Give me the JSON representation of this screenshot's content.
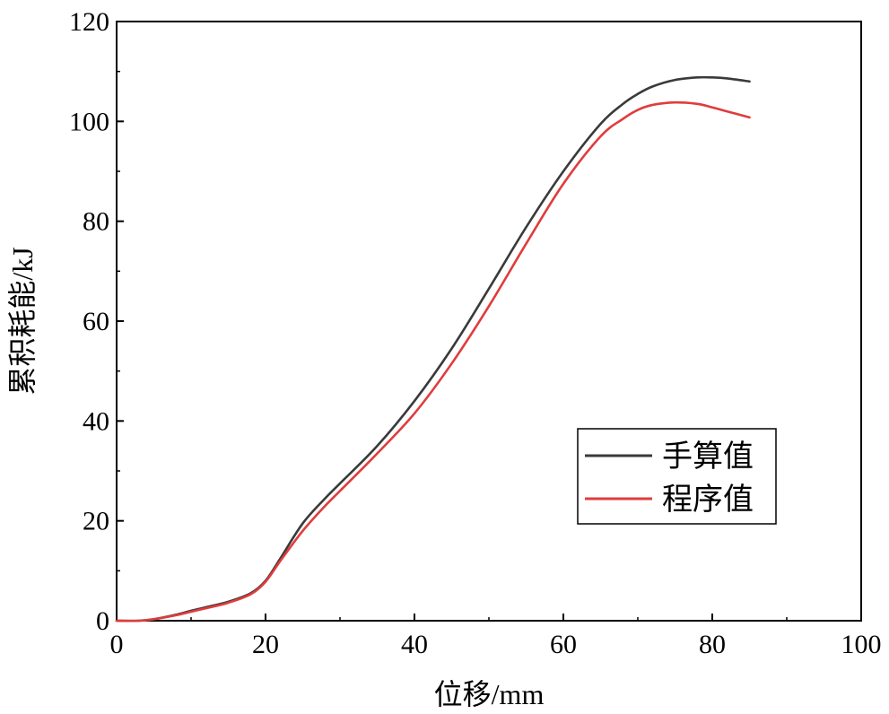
{
  "chart_data": {
    "type": "line",
    "title": "",
    "xlabel": "位移/mm",
    "ylabel": "累积耗能/kJ",
    "xlim": [
      0,
      100
    ],
    "ylim": [
      0,
      120
    ],
    "xticks": [
      0,
      20,
      40,
      60,
      80,
      100
    ],
    "yticks": [
      0,
      20,
      40,
      60,
      80,
      100,
      120
    ],
    "xtick_labels": [
      "0",
      "20",
      "40",
      "60",
      "80",
      "100"
    ],
    "ytick_labels": [
      "0",
      "20",
      "40",
      "60",
      "80",
      "100",
      "120"
    ],
    "grid": false,
    "legend_position": "right-middle",
    "series": [
      {
        "name": "手算值",
        "color": "#3a3a3a",
        "x": [
          0,
          3,
          5,
          8,
          10,
          12,
          15,
          18,
          20,
          22,
          25,
          28,
          30,
          35,
          40,
          45,
          50,
          55,
          60,
          65,
          68,
          70,
          72,
          75,
          78,
          80,
          82,
          85
        ],
        "y": [
          0,
          0,
          0.3,
          1.2,
          2.0,
          2.7,
          3.8,
          5.5,
          8.0,
          12.5,
          19.5,
          24.5,
          27.5,
          35.0,
          44.0,
          54.5,
          66.5,
          78.8,
          90.0,
          99.5,
          103.5,
          105.5,
          107.0,
          108.3,
          108.8,
          108.8,
          108.6,
          108.0
        ]
      },
      {
        "name": "程序值",
        "color": "#e03c3c",
        "x": [
          0,
          3,
          5,
          8,
          10,
          12,
          15,
          18,
          20,
          22,
          25,
          28,
          30,
          35,
          40,
          45,
          50,
          55,
          60,
          65,
          68,
          70,
          72,
          75,
          78,
          80,
          82,
          85
        ],
        "y": [
          0,
          0,
          0.3,
          1.1,
          1.8,
          2.5,
          3.6,
          5.3,
          7.8,
          12.0,
          18.0,
          23.0,
          26.0,
          33.5,
          41.5,
          51.5,
          63.0,
          75.5,
          87.5,
          97.0,
          100.5,
          102.3,
          103.3,
          103.8,
          103.5,
          102.8,
          102.0,
          100.8
        ]
      }
    ]
  }
}
